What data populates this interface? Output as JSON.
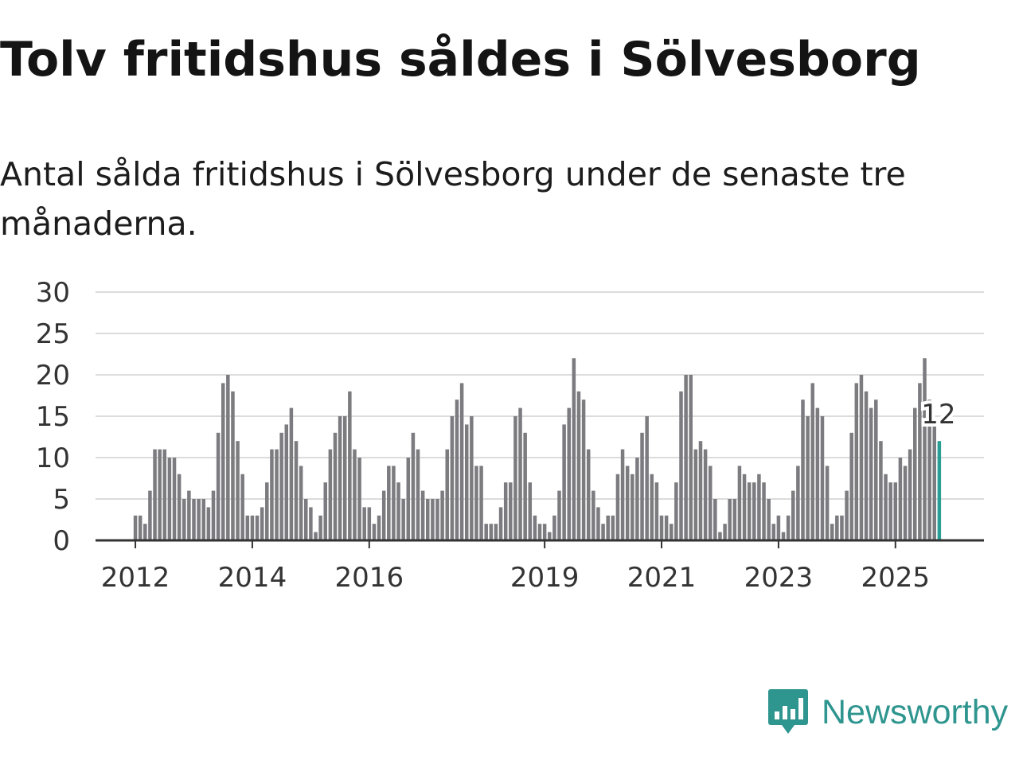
{
  "title": "Tolv fritidshus såldes i Sölvesborg",
  "subtitle": "Antal sålda fritidshus i Sölvesborg under de senaste tre månaderna.",
  "brand": "Newsworthy",
  "colors": {
    "bar": "#7b7b80",
    "highlight": "#2a9d94",
    "grid": "#dcdcdc",
    "axis": "#333333",
    "brand": "#2f958f"
  },
  "chart_data": {
    "type": "bar",
    "title": "Tolv fritidshus såldes i Sölvesborg",
    "xlabel": "",
    "ylabel": "",
    "ylim": [
      0,
      30
    ],
    "yticks": [
      0,
      5,
      10,
      15,
      20,
      25,
      30
    ],
    "x_start": "2012-01",
    "xticks": [
      {
        "label": "2012",
        "index": 0
      },
      {
        "label": "2014",
        "index": 24
      },
      {
        "label": "2016",
        "index": 48
      },
      {
        "label": "2019",
        "index": 84
      },
      {
        "label": "2021",
        "index": 108
      },
      {
        "label": "2023",
        "index": 132
      },
      {
        "label": "2025",
        "index": 156
      }
    ],
    "values": [
      3,
      3,
      2,
      6,
      11,
      11,
      11,
      10,
      10,
      8,
      5,
      6,
      5,
      5,
      5,
      4,
      6,
      13,
      19,
      20,
      18,
      12,
      8,
      3,
      3,
      3,
      4,
      7,
      11,
      11,
      13,
      14,
      16,
      12,
      9,
      5,
      4,
      1,
      3,
      7,
      11,
      13,
      15,
      15,
      18,
      11,
      10,
      4,
      4,
      2,
      3,
      6,
      9,
      9,
      7,
      5,
      10,
      13,
      11,
      6,
      5,
      5,
      5,
      6,
      11,
      15,
      17,
      19,
      14,
      15,
      9,
      9,
      2,
      2,
      2,
      4,
      7,
      7,
      15,
      16,
      13,
      7,
      3,
      2,
      2,
      1,
      3,
      6,
      14,
      16,
      22,
      18,
      17,
      11,
      6,
      4,
      2,
      3,
      3,
      8,
      11,
      9,
      8,
      10,
      13,
      15,
      8,
      7,
      3,
      3,
      2,
      7,
      18,
      20,
      20,
      11,
      12,
      11,
      9,
      5,
      1,
      2,
      5,
      5,
      9,
      8,
      7,
      7,
      8,
      7,
      5,
      2,
      3,
      1,
      3,
      6,
      9,
      17,
      15,
      19,
      16,
      15,
      9,
      2,
      3,
      3,
      6,
      13,
      19,
      20,
      18,
      16,
      17,
      12,
      8,
      7,
      7,
      10,
      9,
      11,
      16,
      19,
      22,
      17,
      14,
      12
    ],
    "highlight_last": true,
    "annotation": {
      "label": "12",
      "index": 165
    }
  }
}
